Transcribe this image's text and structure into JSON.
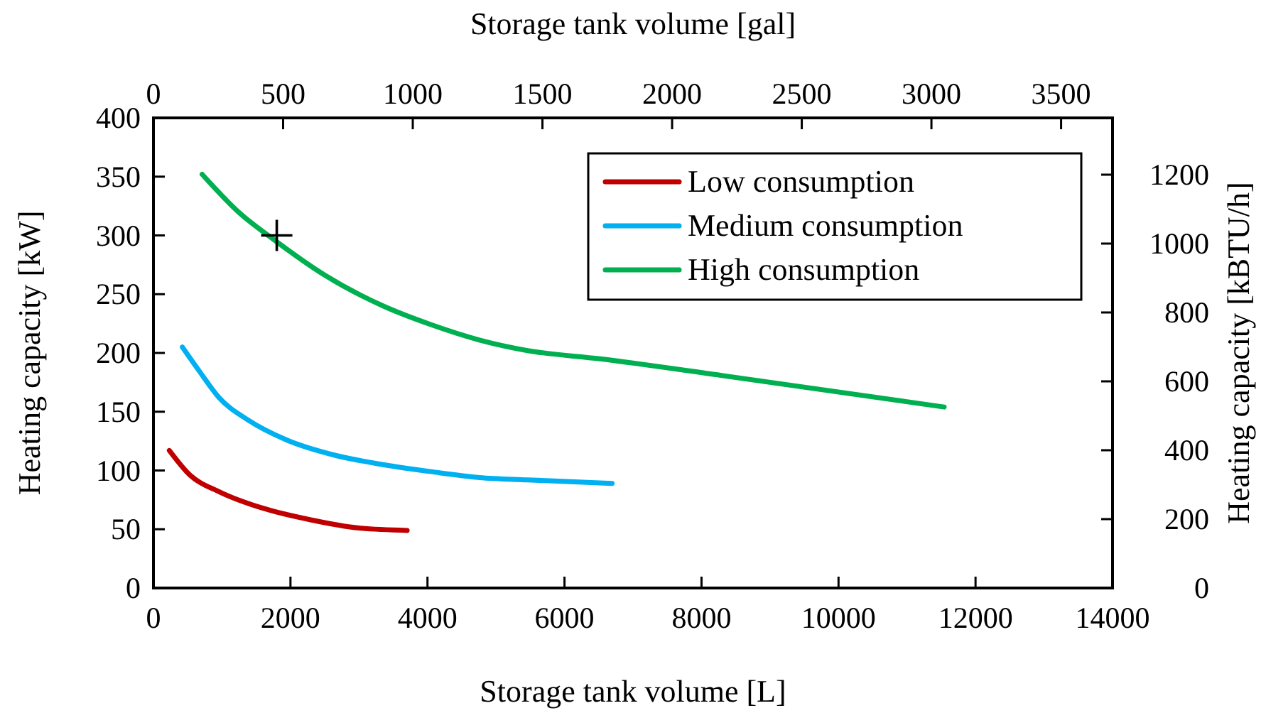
{
  "chart_data": {
    "type": "line",
    "xlabel": "Storage tank volume [L]",
    "ylabel": "Heating capacity [kW]",
    "x2label": "Storage tank volume [gal]",
    "y2label": "Heating capacity [kBTU/h]",
    "xlim": [
      0,
      14000
    ],
    "xticks": [
      0,
      2000,
      4000,
      6000,
      8000,
      10000,
      12000,
      14000
    ],
    "ylim": [
      0,
      400
    ],
    "yticks": [
      0,
      50,
      100,
      150,
      200,
      250,
      300,
      350,
      400
    ],
    "x2lim": [
      0,
      3698.4
    ],
    "x2ticks": [
      0,
      500,
      1000,
      1500,
      2000,
      2500,
      3000,
      3500
    ],
    "y2lim": [
      0,
      1364.9
    ],
    "y2ticks": [
      0,
      200,
      400,
      600,
      800,
      1000,
      1200
    ],
    "grid": false,
    "legend": "top right",
    "line_style": "solid",
    "series": [
      {
        "name": "Low consumption",
        "color": "#c00000",
        "x": [
          232,
          535,
          957,
          1591,
          2295,
          2999,
          3703
        ],
        "values": [
          117,
          96,
          82,
          68,
          58,
          51,
          49
        ]
      },
      {
        "name": "Medium consumption",
        "color": "#00b0f0",
        "x": [
          422,
          676,
          957,
          1380,
          1943,
          2647,
          3351,
          4055,
          4759,
          5463,
          6695
        ],
        "values": [
          205,
          184,
          162,
          143,
          126,
          113,
          105,
          99,
          94,
          92,
          89
        ]
      },
      {
        "name": "High consumption",
        "color": "#00b050",
        "x": [
          711,
          1239,
          1767,
          2506,
          3351,
          4055,
          4759,
          5463,
          6519,
          8279,
          11542
        ],
        "values": [
          352,
          320,
          296,
          266,
          240,
          224,
          211,
          202,
          195,
          181,
          154
        ]
      },
      {
        "type": "scatter",
        "marker": "cross",
        "color": "#000000",
        "x": [
          1800
        ],
        "values": [
          300
        ]
      }
    ]
  }
}
